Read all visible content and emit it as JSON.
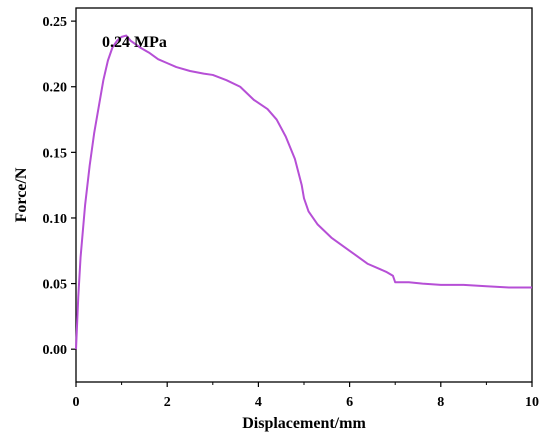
{
  "chart_data": {
    "type": "line",
    "xlabel": "Displacement/mm",
    "ylabel": "Force/N",
    "xlim": [
      0,
      10
    ],
    "ylim": [
      -0.025,
      0.26
    ],
    "x_ticks": [
      "0",
      "2",
      "4",
      "6",
      "8",
      "10"
    ],
    "x_tick_values": [
      0,
      2,
      4,
      6,
      8,
      10
    ],
    "y_ticks": [
      "0.00",
      "0.05",
      "0.10",
      "0.15",
      "0.20",
      "0.25"
    ],
    "y_tick_values": [
      0,
      0.05,
      0.1,
      0.15,
      0.2,
      0.25
    ],
    "annotation": "0.24 MPa",
    "grid": false,
    "series": [
      {
        "color": "#b64fd6",
        "x": [
          0,
          0.05,
          0.1,
          0.2,
          0.3,
          0.4,
          0.5,
          0.6,
          0.7,
          0.8,
          0.9,
          1.0,
          1.1,
          1.2,
          1.4,
          1.6,
          1.8,
          2.0,
          2.2,
          2.5,
          2.8,
          3.0,
          3.3,
          3.6,
          3.9,
          4.2,
          4.4,
          4.6,
          4.8,
          4.95,
          5.0,
          5.1,
          5.3,
          5.6,
          6.0,
          6.4,
          6.8,
          6.95,
          7.0,
          7.3,
          7.6,
          8.0,
          8.5,
          9.0,
          9.5,
          10.0
        ],
        "y": [
          0.0,
          0.04,
          0.07,
          0.11,
          0.14,
          0.165,
          0.185,
          0.205,
          0.22,
          0.23,
          0.235,
          0.238,
          0.239,
          0.235,
          0.23,
          0.226,
          0.221,
          0.218,
          0.215,
          0.212,
          0.21,
          0.209,
          0.205,
          0.2,
          0.19,
          0.183,
          0.175,
          0.162,
          0.145,
          0.125,
          0.115,
          0.105,
          0.095,
          0.085,
          0.075,
          0.065,
          0.059,
          0.056,
          0.051,
          0.051,
          0.05,
          0.049,
          0.049,
          0.048,
          0.047,
          0.047
        ]
      }
    ]
  }
}
